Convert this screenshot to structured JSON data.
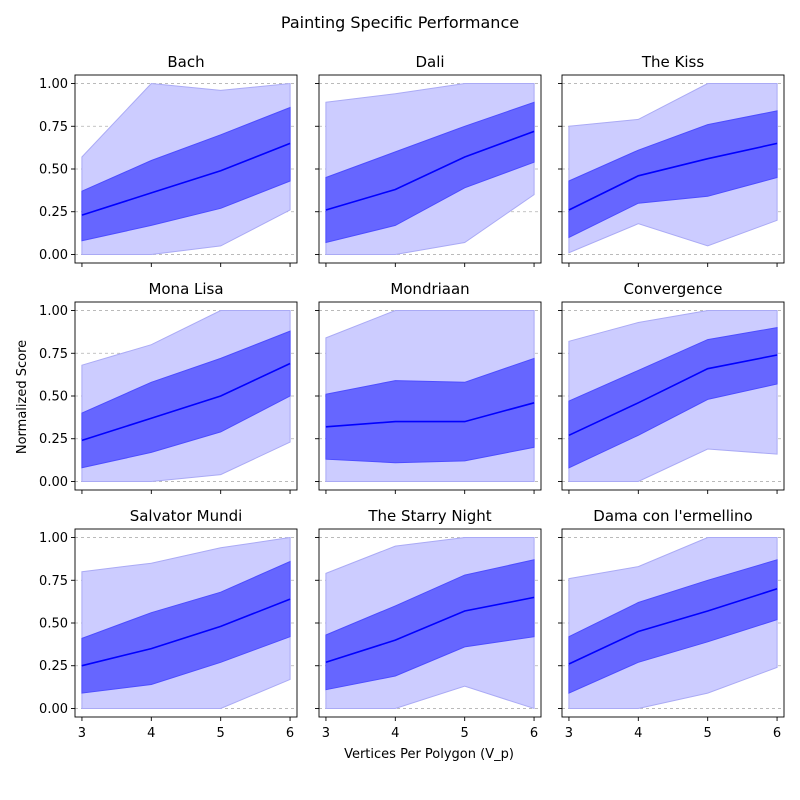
{
  "figure": {
    "suptitle": "Painting Specific Performance",
    "xlabel": "Vertices Per Polygon (V_p)",
    "ylabel": "Normalized Score"
  },
  "colors": {
    "line": "#0000ff",
    "band_inner": "#6666ff",
    "band_outer": "#ccccff",
    "band_outer_edge": "#aaaaf5",
    "grid": "#b0b0b0"
  },
  "chart_data": [
    {
      "type": "line",
      "title": "Bach",
      "x": [
        3,
        4,
        5,
        6
      ],
      "xlim": [
        2.9,
        6.1
      ],
      "ylim": [
        -0.05,
        1.05
      ],
      "yticks": [
        "0.00",
        "0.25",
        "0.50",
        "0.75",
        "1.00"
      ],
      "xticks": [
        "3",
        "4",
        "5",
        "6"
      ],
      "grid": "y",
      "mean": [
        0.23,
        0.36,
        0.49,
        0.65
      ],
      "inner_lower": [
        0.08,
        0.17,
        0.27,
        0.43
      ],
      "inner_upper": [
        0.37,
        0.55,
        0.7,
        0.86
      ],
      "outer_lower": [
        0.0,
        0.0,
        0.05,
        0.26
      ],
      "outer_upper": [
        0.57,
        1.0,
        0.96,
        1.0
      ]
    },
    {
      "type": "line",
      "title": "Dali",
      "x": [
        3,
        4,
        5,
        6
      ],
      "xlim": [
        2.9,
        6.1
      ],
      "ylim": [
        -0.05,
        1.05
      ],
      "yticks": [
        "0.00",
        "0.25",
        "0.50",
        "0.75",
        "1.00"
      ],
      "xticks": [
        "3",
        "4",
        "5",
        "6"
      ],
      "grid": "y",
      "mean": [
        0.26,
        0.38,
        0.57,
        0.72
      ],
      "inner_lower": [
        0.07,
        0.17,
        0.39,
        0.54
      ],
      "inner_upper": [
        0.45,
        0.6,
        0.75,
        0.89
      ],
      "outer_lower": [
        0.0,
        0.0,
        0.07,
        0.35
      ],
      "outer_upper": [
        0.89,
        0.94,
        1.0,
        1.0
      ]
    },
    {
      "type": "line",
      "title": "The Kiss",
      "x": [
        3,
        4,
        5,
        6
      ],
      "xlim": [
        2.9,
        6.1
      ],
      "ylim": [
        -0.05,
        1.05
      ],
      "yticks": [
        "0.00",
        "0.25",
        "0.50",
        "0.75",
        "1.00"
      ],
      "xticks": [
        "3",
        "4",
        "5",
        "6"
      ],
      "grid": "y",
      "mean": [
        0.26,
        0.46,
        0.56,
        0.65
      ],
      "inner_lower": [
        0.1,
        0.3,
        0.34,
        0.45
      ],
      "inner_upper": [
        0.43,
        0.61,
        0.76,
        0.84
      ],
      "outer_lower": [
        0.01,
        0.18,
        0.05,
        0.2
      ],
      "outer_upper": [
        0.75,
        0.79,
        1.0,
        1.0
      ]
    },
    {
      "type": "line",
      "title": "Mona Lisa",
      "x": [
        3,
        4,
        5,
        6
      ],
      "xlim": [
        2.9,
        6.1
      ],
      "ylim": [
        -0.05,
        1.05
      ],
      "yticks": [
        "0.00",
        "0.25",
        "0.50",
        "0.75",
        "1.00"
      ],
      "xticks": [
        "3",
        "4",
        "5",
        "6"
      ],
      "grid": "y",
      "mean": [
        0.24,
        0.37,
        0.5,
        0.69
      ],
      "inner_lower": [
        0.08,
        0.17,
        0.29,
        0.5
      ],
      "inner_upper": [
        0.4,
        0.58,
        0.72,
        0.88
      ],
      "outer_lower": [
        0.0,
        0.0,
        0.04,
        0.23
      ],
      "outer_upper": [
        0.68,
        0.8,
        1.0,
        1.0
      ]
    },
    {
      "type": "line",
      "title": "Mondriaan",
      "x": [
        3,
        4,
        5,
        6
      ],
      "xlim": [
        2.9,
        6.1
      ],
      "ylim": [
        -0.05,
        1.05
      ],
      "yticks": [
        "0.00",
        "0.25",
        "0.50",
        "0.75",
        "1.00"
      ],
      "xticks": [
        "3",
        "4",
        "5",
        "6"
      ],
      "grid": "y",
      "mean": [
        0.32,
        0.35,
        0.35,
        0.46
      ],
      "inner_lower": [
        0.13,
        0.11,
        0.12,
        0.2
      ],
      "inner_upper": [
        0.51,
        0.59,
        0.58,
        0.72
      ],
      "outer_lower": [
        0.0,
        0.0,
        0.0,
        0.0
      ],
      "outer_upper": [
        0.84,
        1.0,
        1.0,
        1.0
      ]
    },
    {
      "type": "line",
      "title": "Convergence",
      "x": [
        3,
        4,
        5,
        6
      ],
      "xlim": [
        2.9,
        6.1
      ],
      "ylim": [
        -0.05,
        1.05
      ],
      "yticks": [
        "0.00",
        "0.25",
        "0.50",
        "0.75",
        "1.00"
      ],
      "xticks": [
        "3",
        "4",
        "5",
        "6"
      ],
      "grid": "y",
      "mean": [
        0.27,
        0.46,
        0.66,
        0.74
      ],
      "inner_lower": [
        0.08,
        0.27,
        0.48,
        0.57
      ],
      "inner_upper": [
        0.47,
        0.65,
        0.83,
        0.9
      ],
      "outer_lower": [
        0.0,
        0.0,
        0.19,
        0.16
      ],
      "outer_upper": [
        0.82,
        0.93,
        1.0,
        1.0
      ]
    },
    {
      "type": "line",
      "title": "Salvator Mundi",
      "x": [
        3,
        4,
        5,
        6
      ],
      "xlim": [
        2.9,
        6.1
      ],
      "ylim": [
        -0.05,
        1.05
      ],
      "yticks": [
        "0.00",
        "0.25",
        "0.50",
        "0.75",
        "1.00"
      ],
      "xticks": [
        "3",
        "4",
        "5",
        "6"
      ],
      "grid": "y",
      "mean": [
        0.25,
        0.35,
        0.48,
        0.64
      ],
      "inner_lower": [
        0.09,
        0.14,
        0.27,
        0.42
      ],
      "inner_upper": [
        0.41,
        0.56,
        0.68,
        0.86
      ],
      "outer_lower": [
        0.0,
        0.0,
        0.0,
        0.17
      ],
      "outer_upper": [
        0.8,
        0.85,
        0.94,
        1.0
      ]
    },
    {
      "type": "line",
      "title": "The Starry Night",
      "x": [
        3,
        4,
        5,
        6
      ],
      "xlim": [
        2.9,
        6.1
      ],
      "ylim": [
        -0.05,
        1.05
      ],
      "yticks": [
        "0.00",
        "0.25",
        "0.50",
        "0.75",
        "1.00"
      ],
      "xticks": [
        "3",
        "4",
        "5",
        "6"
      ],
      "grid": "y",
      "mean": [
        0.27,
        0.4,
        0.57,
        0.65
      ],
      "inner_lower": [
        0.11,
        0.19,
        0.36,
        0.42
      ],
      "inner_upper": [
        0.43,
        0.6,
        0.78,
        0.87
      ],
      "outer_lower": [
        0.0,
        0.0,
        0.13,
        0.0
      ],
      "outer_upper": [
        0.79,
        0.95,
        1.0,
        1.0
      ]
    },
    {
      "type": "line",
      "title": "Dama con l'ermellino",
      "x": [
        3,
        4,
        5,
        6
      ],
      "xlim": [
        2.9,
        6.1
      ],
      "ylim": [
        -0.05,
        1.05
      ],
      "yticks": [
        "0.00",
        "0.25",
        "0.50",
        "0.75",
        "1.00"
      ],
      "xticks": [
        "3",
        "4",
        "5",
        "6"
      ],
      "grid": "y",
      "mean": [
        0.26,
        0.45,
        0.57,
        0.7
      ],
      "inner_lower": [
        0.09,
        0.27,
        0.39,
        0.52
      ],
      "inner_upper": [
        0.42,
        0.62,
        0.75,
        0.87
      ],
      "outer_lower": [
        0.0,
        0.0,
        0.09,
        0.24
      ],
      "outer_upper": [
        0.76,
        0.83,
        1.0,
        1.0
      ]
    }
  ]
}
